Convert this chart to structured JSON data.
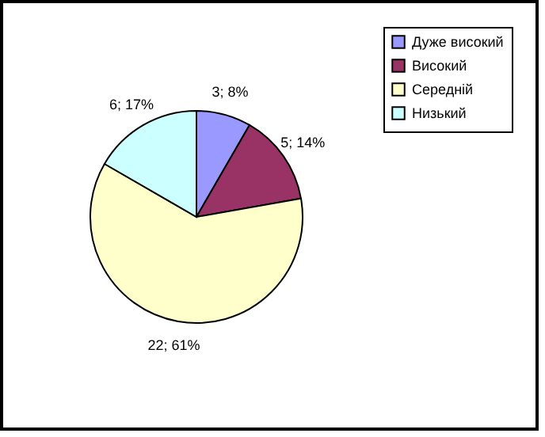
{
  "chart_data": {
    "type": "pie",
    "categories": [
      "Дуже високий",
      "Високий",
      "Середній",
      "Низький"
    ],
    "values": [
      3,
      5,
      22,
      6
    ],
    "colors": [
      "#9999ff",
      "#993366",
      "#ffffcc",
      "#ccffff"
    ],
    "value_labels": [
      "3; 8%",
      "5; 14%",
      "22; 61%",
      "6; 17%"
    ],
    "legend": "right"
  }
}
